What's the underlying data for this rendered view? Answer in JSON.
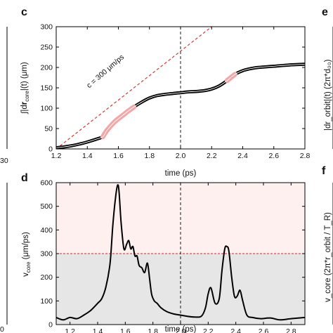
{
  "chart_data": [
    {
      "type": "line",
      "panel_label": "c",
      "xlabel": "time (ps)",
      "ylabel": "∫|dr_core|(t)  (μm)",
      "ylabel_parts": {
        "pre": "∫|d",
        "bold": "r",
        "sub": "core",
        "post": "|(t)  (μm)"
      },
      "xlim": [
        1.2,
        2.8
      ],
      "ylim": [
        0,
        300
      ],
      "x_ticks": [
        "1.2",
        "1.4",
        "1.6",
        "1.8",
        "2.0",
        "2.2",
        "2.4",
        "2.6",
        "2.8"
      ],
      "y_ticks": [
        "0",
        "50",
        "100",
        "150",
        "200",
        "250",
        "300"
      ],
      "vline_x": 2.0,
      "annotation": "c = 300 μm/ps",
      "reference_line": {
        "x": [
          1.2,
          2.0
        ],
        "y": [
          0,
          240
        ]
      },
      "series": [
        {
          "x": [
            1.2,
            1.25,
            1.3,
            1.35,
            1.4,
            1.45,
            1.5,
            1.52,
            1.55,
            1.58,
            1.62,
            1.66,
            1.7,
            1.75,
            1.8,
            1.85,
            1.9,
            1.95,
            2.0,
            2.05,
            2.1,
            2.15,
            2.2,
            2.25,
            2.3,
            2.35,
            2.4,
            2.45,
            2.5,
            2.6,
            2.7,
            2.8
          ],
          "y": [
            3,
            5,
            8,
            12,
            17,
            23,
            30,
            42,
            56,
            68,
            80,
            92,
            103,
            115,
            125,
            131,
            134,
            136,
            138,
            140,
            141,
            143,
            147,
            155,
            168,
            183,
            192,
            197,
            200,
            203,
            206,
            208
          ]
        }
      ],
      "highlight_ranges": [
        [
          1.5,
          1.67
        ],
        [
          2.3,
          2.34
        ]
      ],
      "highlight_color": "#f4a6a6"
    },
    {
      "type": "line",
      "panel_label": "d",
      "xlabel": "time (ps)",
      "ylabel": "v_core (μm/ps)",
      "ylabel_parts": {
        "pre": "v",
        "sub": "core",
        "post": " (μm/ps)"
      },
      "xlim": [
        1.1,
        2.9
      ],
      "ylim": [
        0,
        600
      ],
      "x_ticks": [
        "1.2",
        "1.4",
        "1.6",
        "1.8",
        "2.0",
        "2.2",
        "2.4",
        "2.6",
        "2.8"
      ],
      "y_ticks": [
        "0",
        "100",
        "200",
        "300",
        "400",
        "500",
        "600"
      ],
      "vline_x": 2.0,
      "threshold_y": 300,
      "series": [
        {
          "x": [
            1.1,
            1.15,
            1.2,
            1.25,
            1.3,
            1.35,
            1.4,
            1.43,
            1.46,
            1.49,
            1.51,
            1.53,
            1.545,
            1.555,
            1.57,
            1.59,
            1.61,
            1.625,
            1.64,
            1.655,
            1.67,
            1.685,
            1.7,
            1.72,
            1.74,
            1.76,
            1.775,
            1.79,
            1.81,
            1.83,
            1.86,
            1.9,
            1.95,
            2.0,
            2.05,
            2.1,
            2.15,
            2.18,
            2.2,
            2.22,
            2.25,
            2.28,
            2.3,
            2.32,
            2.335,
            2.35,
            2.37,
            2.39,
            2.41,
            2.43,
            2.45,
            2.48,
            2.52,
            2.58,
            2.65,
            2.72,
            2.8,
            2.9
          ],
          "y": [
            30,
            20,
            30,
            25,
            40,
            60,
            90,
            110,
            160,
            260,
            420,
            540,
            590,
            560,
            430,
            320,
            340,
            355,
            320,
            330,
            290,
            290,
            250,
            240,
            220,
            260,
            200,
            130,
            100,
            90,
            70,
            55,
            45,
            40,
            35,
            32,
            35,
            70,
            130,
            155,
            90,
            110,
            230,
            320,
            330,
            310,
            200,
            120,
            120,
            145,
            100,
            40,
            30,
            25,
            28,
            20,
            25,
            30
          ]
        }
      ],
      "region_above_color": "#fdf0ef",
      "region_below_color": "#e6e6e6"
    }
  ],
  "panel_labels_partial": {
    "top_right": "e",
    "bottom_right": "f"
  },
  "left_partial_ticks": {
    "top": "30",
    "bottom": "0"
  },
  "right_partial_labels": {
    "top": "|dr_orbit|(t)  (2π*d₀₀)",
    "bottom": "v_core  (2π*r_orbit / T_R)"
  }
}
